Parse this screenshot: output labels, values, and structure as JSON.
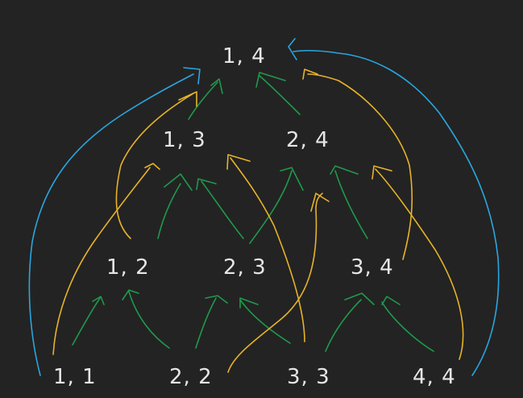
{
  "colors": {
    "background": "#232323",
    "text": "#e6e6e6",
    "green": "#1f9a4c",
    "yellow": "#e8b32a",
    "blue": "#2aa6e0"
  },
  "nodes": {
    "n14": "1, 4",
    "n13": "1, 3",
    "n24": "2, 4",
    "n12": "1, 2",
    "n23": "2, 3",
    "n34": "3, 4",
    "n11": "1, 1",
    "n22": "2, 2",
    "n33": "3, 3",
    "n44": "4, 4"
  }
}
